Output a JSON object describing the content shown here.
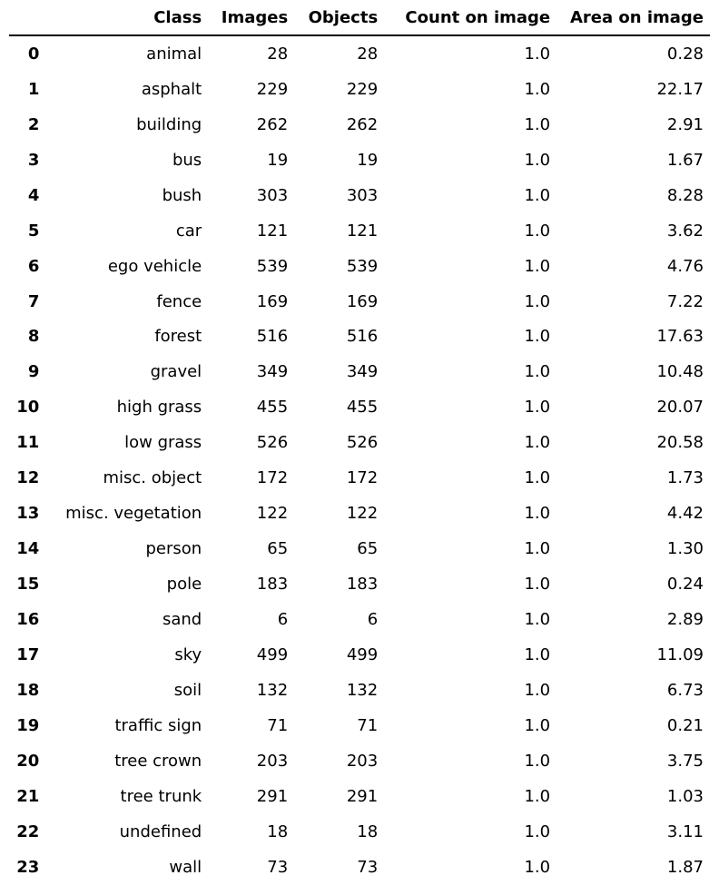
{
  "chart_data": {
    "type": "table",
    "columns": [
      "",
      "Class",
      "Images",
      "Objects",
      "Count on image",
      "Area on image"
    ],
    "rows": [
      [
        "0",
        "animal",
        "28",
        "28",
        "1.0",
        "0.28"
      ],
      [
        "1",
        "asphalt",
        "229",
        "229",
        "1.0",
        "22.17"
      ],
      [
        "2",
        "building",
        "262",
        "262",
        "1.0",
        "2.91"
      ],
      [
        "3",
        "bus",
        "19",
        "19",
        "1.0",
        "1.67"
      ],
      [
        "4",
        "bush",
        "303",
        "303",
        "1.0",
        "8.28"
      ],
      [
        "5",
        "car",
        "121",
        "121",
        "1.0",
        "3.62"
      ],
      [
        "6",
        "ego vehicle",
        "539",
        "539",
        "1.0",
        "4.76"
      ],
      [
        "7",
        "fence",
        "169",
        "169",
        "1.0",
        "7.22"
      ],
      [
        "8",
        "forest",
        "516",
        "516",
        "1.0",
        "17.63"
      ],
      [
        "9",
        "gravel",
        "349",
        "349",
        "1.0",
        "10.48"
      ],
      [
        "10",
        "high grass",
        "455",
        "455",
        "1.0",
        "20.07"
      ],
      [
        "11",
        "low grass",
        "526",
        "526",
        "1.0",
        "20.58"
      ],
      [
        "12",
        "misc. object",
        "172",
        "172",
        "1.0",
        "1.73"
      ],
      [
        "13",
        "misc. vegetation",
        "122",
        "122",
        "1.0",
        "4.42"
      ],
      [
        "14",
        "person",
        "65",
        "65",
        "1.0",
        "1.30"
      ],
      [
        "15",
        "pole",
        "183",
        "183",
        "1.0",
        "0.24"
      ],
      [
        "16",
        "sand",
        "6",
        "6",
        "1.0",
        "2.89"
      ],
      [
        "17",
        "sky",
        "499",
        "499",
        "1.0",
        "11.09"
      ],
      [
        "18",
        "soil",
        "132",
        "132",
        "1.0",
        "6.73"
      ],
      [
        "19",
        "traffic sign",
        "71",
        "71",
        "1.0",
        "0.21"
      ],
      [
        "20",
        "tree crown",
        "203",
        "203",
        "1.0",
        "3.75"
      ],
      [
        "21",
        "tree trunk",
        "291",
        "291",
        "1.0",
        "1.03"
      ],
      [
        "22",
        "undefined",
        "18",
        "18",
        "1.0",
        "3.11"
      ],
      [
        "23",
        "wall",
        "73",
        "73",
        "1.0",
        "1.87"
      ]
    ]
  }
}
